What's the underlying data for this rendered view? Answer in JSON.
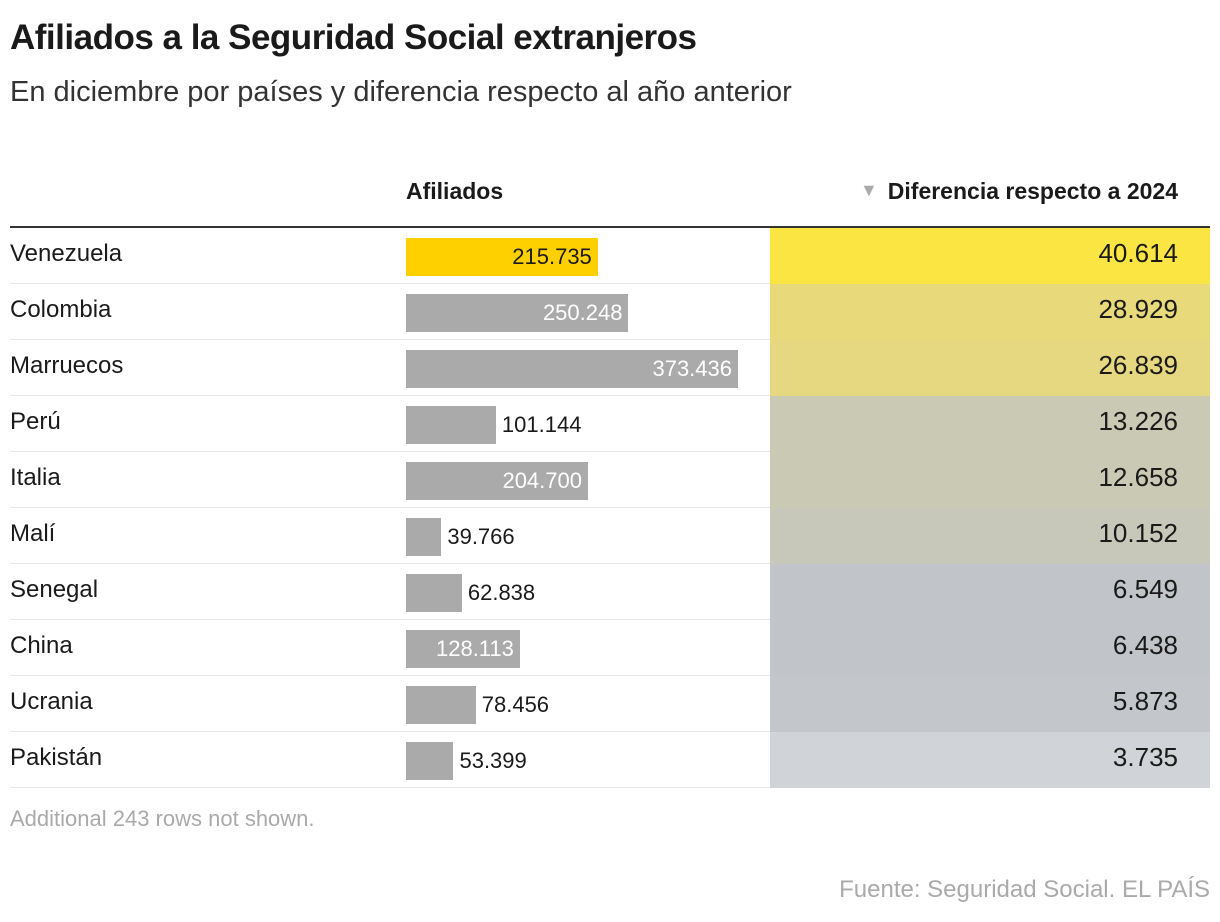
{
  "title": "Afiliados a la Seguridad Social extranjeros",
  "subtitle": "En diciembre por países y diferencia respecto al año anterior",
  "chart_data": {
    "type": "table",
    "columns": [
      "",
      "Afiliados",
      "Diferencia respecto a 2024"
    ],
    "sort_indicator": "descending",
    "sorted_column": "Diferencia respecto a 2024",
    "rows": [
      {
        "country": "Venezuela",
        "afiliados": 215735,
        "afiliados_label": "215.735",
        "diferencia": 40614,
        "diferencia_label": "40.614",
        "highlight": true,
        "diff_color": "#fbe543"
      },
      {
        "country": "Colombia",
        "afiliados": 250248,
        "afiliados_label": "250.248",
        "diferencia": 28929,
        "diferencia_label": "28.929",
        "diff_color": "#e8da7a"
      },
      {
        "country": "Marruecos",
        "afiliados": 373436,
        "afiliados_label": "373.436",
        "diferencia": 26839,
        "diferencia_label": "26.839",
        "diff_color": "#e6d880"
      },
      {
        "country": "Perú",
        "afiliados": 101144,
        "afiliados_label": "101.144",
        "diferencia": 13226,
        "diferencia_label": "13.226",
        "diff_color": "#cac9b4"
      },
      {
        "country": "Italia",
        "afiliados": 204700,
        "afiliados_label": "204.700",
        "diferencia": 12658,
        "diferencia_label": "12.658",
        "diff_color": "#cac9b4"
      },
      {
        "country": "Malí",
        "afiliados": 39766,
        "afiliados_label": "39.766",
        "diferencia": 10152,
        "diferencia_label": "10.152",
        "diff_color": "#c8c8ba"
      },
      {
        "country": "Senegal",
        "afiliados": 62838,
        "afiliados_label": "62.838",
        "diferencia": 6549,
        "diferencia_label": "6.549",
        "diff_color": "#c1c4c9"
      },
      {
        "country": "China",
        "afiliados": 128113,
        "afiliados_label": "128.113",
        "diferencia": 6438,
        "diferencia_label": "6.438",
        "diff_color": "#c1c4c9"
      },
      {
        "country": "Ucrania",
        "afiliados": 78456,
        "afiliados_label": "78.456",
        "diferencia": 5873,
        "diferencia_label": "5.873",
        "diff_color": "#c3c6cb"
      },
      {
        "country": "Pakistán",
        "afiliados": 53399,
        "afiliados_label": "53.399",
        "diferencia": 3735,
        "diferencia_label": "3.735",
        "diff_color": "#d0d3d8"
      }
    ],
    "bar_color": "#aaaaaa",
    "highlight_color": "#ffd000"
  },
  "note": "Additional 243 rows not shown.",
  "source": "Fuente: Seguridad Social. EL PAÍS"
}
